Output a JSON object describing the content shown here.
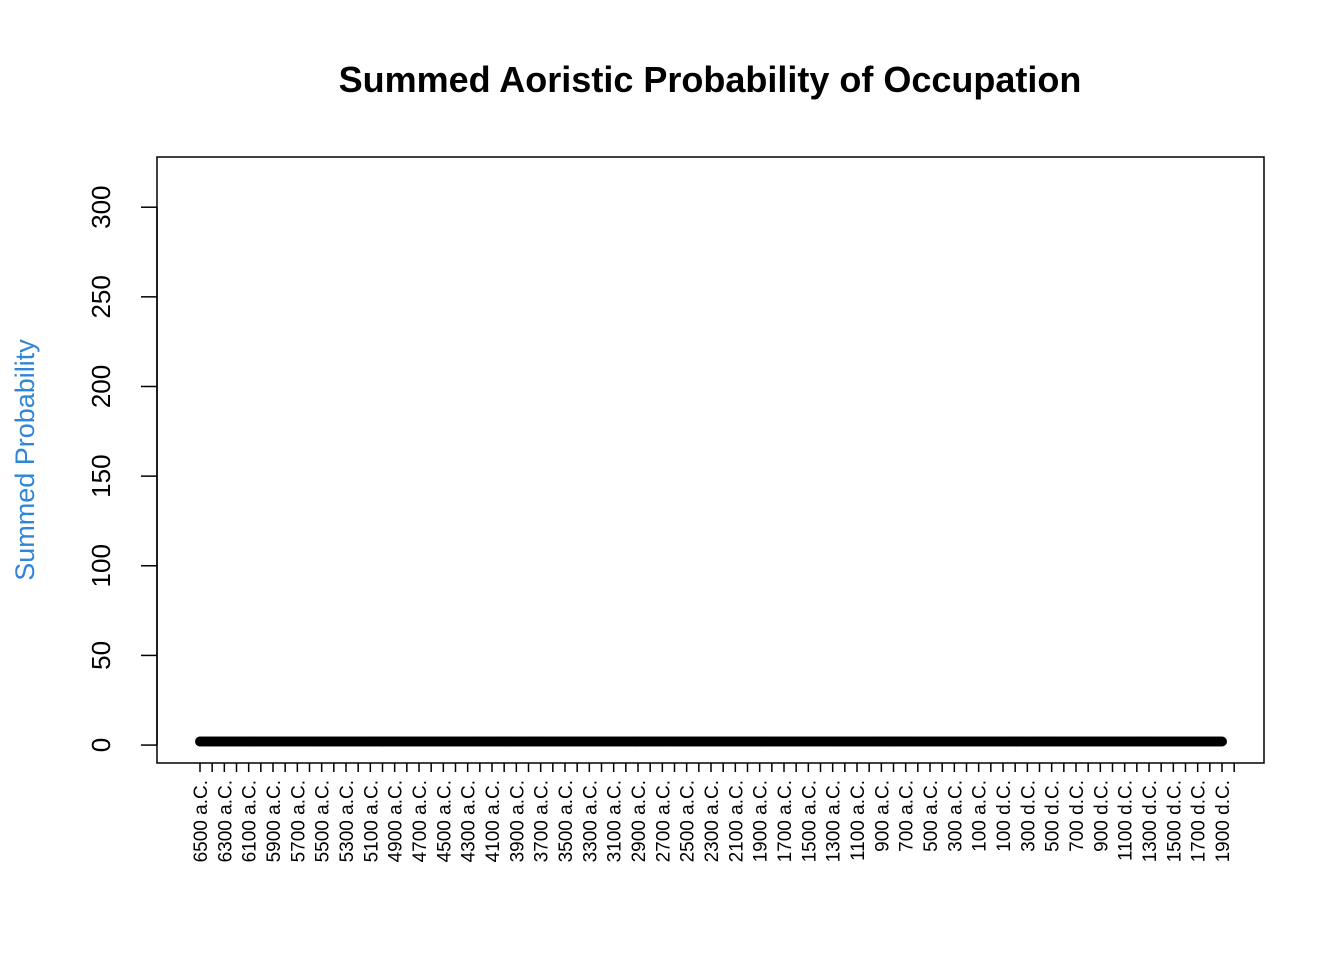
{
  "chart_data": {
    "type": "line",
    "title": "Summed Aoristic Probability of Occupation",
    "xlabel": "",
    "ylabel": "Summed Probability",
    "ylabel_color": "#2f86d8",
    "series_color": "#000000",
    "markers": true,
    "ylim": [
      -10,
      328
    ],
    "yticks": [
      0,
      50,
      100,
      150,
      200,
      250,
      300
    ],
    "xtick_labels": [
      "6500 a.C.",
      "6300 a.C.",
      "6100 a.C.",
      "5900 a.C.",
      "5700 a.C.",
      "5500 a.C.",
      "5300 a.C.",
      "5100 a.C.",
      "4900 a.C.",
      "4700 a.C.",
      "4500 a.C.",
      "4300 a.C.",
      "4100 a.C.",
      "3900 a.C.",
      "3700 a.C.",
      "3500 a.C.",
      "3300 a.C.",
      "3100 a.C.",
      "2900 a.C.",
      "2700 a.C.",
      "2500 a.C.",
      "2300 a.C.",
      "2100 a.C.",
      "1900 a.C.",
      "1700 a.C.",
      "1500 a.C.",
      "1300 a.C.",
      "1100 a.C.",
      "900 a.C.",
      "700 a.C.",
      "500 a.C.",
      "300 a.C.",
      "100 a.C.",
      "100 d.C.",
      "300 d.C.",
      "500 d.C.",
      "700 d.C.",
      "900 d.C.",
      "1100 d.C.",
      "1300 d.C.",
      "1500 d.C.",
      "1700 d.C.",
      "1900 d.C."
    ],
    "series": [
      {
        "name": "",
        "values": [
          2,
          2,
          2,
          2,
          2,
          2,
          2,
          2,
          2,
          2,
          2,
          2,
          2,
          2,
          2,
          2,
          2,
          2,
          2,
          2,
          2,
          2,
          2,
          2,
          2,
          2,
          2,
          2,
          2,
          2,
          2,
          2,
          2,
          2,
          2,
          2,
          2,
          2,
          2,
          2,
          2,
          2,
          2,
          2,
          2,
          2,
          2,
          2,
          2,
          2,
          2,
          2,
          2,
          2,
          2,
          2,
          2,
          2,
          2,
          2,
          2,
          2,
          2,
          2,
          2,
          2,
          2,
          2,
          2,
          2,
          2,
          2,
          2,
          2,
          2,
          2,
          2,
          2,
          2,
          2,
          2,
          2,
          2,
          2,
          2,
          2,
          2,
          2,
          2,
          2,
          2,
          2,
          2,
          2,
          2,
          2,
          2,
          2,
          2,
          2,
          2,
          2,
          2,
          2,
          2,
          2,
          2,
          2,
          2,
          2,
          2,
          2,
          2,
          2,
          2,
          2,
          2,
          2,
          2,
          2,
          2,
          2,
          2,
          2,
          2,
          2,
          2,
          2,
          2,
          2,
          2,
          2,
          2,
          2,
          2,
          2,
          2,
          2,
          2,
          2,
          2,
          2,
          2,
          2,
          2,
          2,
          2,
          2,
          2,
          2,
          2,
          2,
          2,
          2,
          2,
          2,
          2,
          2,
          2,
          2,
          2,
          2,
          2,
          2,
          2,
          2,
          2,
          2,
          2,
          2,
          2,
          2,
          2,
          2,
          2,
          2,
          2,
          2,
          2,
          2,
          2,
          2,
          2,
          2,
          2,
          2,
          2,
          2,
          2,
          2,
          2,
          2,
          2,
          2,
          2,
          2,
          2,
          2,
          2,
          2,
          2,
          2,
          2,
          2,
          2,
          2,
          2,
          2,
          2,
          2,
          2,
          2,
          2,
          2,
          2,
          2,
          2,
          2,
          2,
          2,
          2,
          2,
          2,
          2,
          2,
          2,
          2,
          2,
          2,
          2,
          2,
          2,
          2,
          2,
          2,
          2,
          2,
          2,
          2,
          2,
          2,
          2,
          2,
          2,
          2,
          2,
          2,
          2,
          2,
          2,
          2,
          2,
          2,
          2,
          2,
          2,
          2,
          2,
          2,
          2,
          2,
          2,
          2,
          2,
          2,
          2,
          2,
          2,
          2,
          2,
          2,
          2,
          2,
          2,
          2,
          2,
          2,
          2,
          2,
          2,
          2,
          2,
          2,
          2,
          2,
          2,
          2,
          2,
          2,
          2,
          2,
          2,
          2,
          2,
          2,
          2,
          2,
          2,
          2,
          2,
          2,
          2,
          2,
          2,
          2,
          2,
          2,
          2,
          2,
          2,
          2,
          2,
          2,
          2,
          2,
          2,
          2,
          2,
          2,
          2,
          2,
          2,
          2,
          2,
          2,
          2,
          2,
          2,
          2,
          2,
          2,
          2,
          2,
          2,
          2,
          2,
          2,
          2,
          2,
          2,
          2,
          2,
          2,
          2,
          2,
          2,
          2,
          2,
          2,
          2,
          2,
          2,
          2,
          2,
          2,
          2,
          2,
          2,
          2,
          2,
          2,
          2,
          2,
          2,
          2,
          2,
          2,
          2,
          2,
          2,
          2,
          2,
          2,
          2,
          2,
          2,
          2,
          2,
          2,
          2,
          2,
          2,
          2,
          2,
          2,
          2,
          2,
          2,
          2,
          2,
          2,
          2,
          2,
          2,
          2,
          2,
          2,
          2,
          2,
          2,
          2,
          2,
          2,
          2,
          2,
          2,
          2,
          2,
          2,
          2,
          2,
          2,
          2,
          2,
          2,
          2,
          2,
          2,
          2,
          2,
          2,
          2,
          2,
          2,
          2,
          2,
          2,
          2,
          2,
          2,
          2,
          2,
          2,
          2,
          2,
          2,
          2,
          2,
          2,
          2,
          2,
          2,
          2,
          2,
          2,
          2,
          2,
          2,
          2,
          2,
          2,
          2,
          2,
          2,
          2,
          2,
          2,
          2,
          2,
          2,
          2,
          2,
          2,
          2,
          2,
          2,
          2,
          2,
          2,
          2,
          2,
          2,
          2,
          2,
          2,
          2,
          2,
          2,
          2,
          2,
          2,
          2,
          2,
          2,
          2,
          2,
          2,
          2,
          2,
          2,
          2,
          2,
          2,
          2,
          2,
          2,
          2,
          2,
          2,
          2,
          2,
          2,
          2,
          2,
          2,
          2,
          2,
          2,
          2,
          2,
          2,
          2,
          2,
          2,
          2,
          2,
          2,
          2,
          2,
          2,
          2,
          2,
          2,
          2,
          2,
          2,
          2,
          2,
          2,
          2,
          2,
          2,
          2,
          2,
          2,
          2,
          2,
          2,
          2,
          2,
          2,
          2,
          2,
          2,
          2,
          2,
          2,
          2,
          2,
          2,
          2,
          2,
          2,
          2,
          2,
          2,
          2,
          2,
          2,
          2,
          2,
          2,
          2,
          2,
          2,
          2,
          2,
          2,
          2,
          2,
          2,
          2,
          2,
          2,
          2,
          2,
          2,
          2,
          2,
          2,
          2,
          2,
          2,
          2,
          2,
          2,
          2,
          2,
          2,
          2,
          2,
          2,
          2,
          2,
          2,
          2,
          2,
          2,
          2,
          2,
          2,
          2,
          2,
          2,
          2,
          2,
          2,
          2,
          2,
          2,
          2,
          2,
          2,
          2,
          2,
          2,
          2,
          2,
          2,
          2,
          2,
          2,
          2,
          2,
          2,
          2,
          2,
          2,
          2,
          2,
          2,
          2,
          2,
          2,
          2,
          2,
          2,
          2,
          2,
          2
        ]
      }
    ]
  }
}
